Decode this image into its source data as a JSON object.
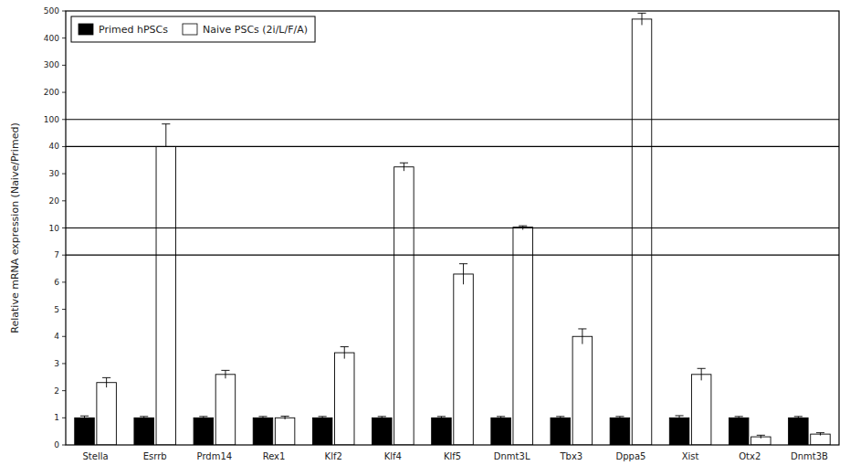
{
  "chart_data": {
    "type": "bar",
    "ylabel": "Relative mRNA expression (Naive/Primed)",
    "categories": [
      "Stella",
      "Esrrb",
      "Prdm14",
      "Rex1",
      "Klf2",
      "Klf4",
      "Klf5",
      "Dnmt3L",
      "Tbx3",
      "Dppa5",
      "Xist",
      "Otx2",
      "Dnmt3B"
    ],
    "series": [
      {
        "name": "Primed hPSCs",
        "color": "#000000",
        "values": [
          1.0,
          1.0,
          1.0,
          1.0,
          1.0,
          1.0,
          1.0,
          1.0,
          1.0,
          1.0,
          1.0,
          1.0,
          1.0
        ],
        "error_plus": [
          0.07,
          0.05,
          0.05,
          0.05,
          0.05,
          0.05,
          0.05,
          0.05,
          0.05,
          0.05,
          0.08,
          0.05,
          0.05
        ],
        "error_minus": [
          0.07,
          0.05,
          0.05,
          0.05,
          0.05,
          0.05,
          0.05,
          0.05,
          0.05,
          0.05,
          0.08,
          0.05,
          0.05
        ]
      },
      {
        "name": "Naive PSCs (2i/L/F/A)",
        "color": "#ffffff",
        "values": [
          2.3,
          40.0,
          2.6,
          1.0,
          3.4,
          32.5,
          6.3,
          10.3,
          4.0,
          470.0,
          2.6,
          0.3,
          0.4
        ],
        "error_plus": [
          0.18,
          50.0,
          0.15,
          0.06,
          0.22,
          1.5,
          0.38,
          0.5,
          0.28,
          22.0,
          0.22,
          0.06,
          0.05
        ],
        "error_minus": [
          0.18,
          0.0,
          0.15,
          0.06,
          0.22,
          1.5,
          0.38,
          0.5,
          0.28,
          22.0,
          0.22,
          0.06,
          0.05
        ]
      }
    ],
    "ylim": [
      0,
      500
    ],
    "yticks": [
      0,
      1,
      2,
      3,
      4,
      5,
      6,
      7,
      10,
      20,
      30,
      40,
      100,
      200,
      300,
      400,
      500
    ],
    "grid": false,
    "legend": "upper left"
  }
}
